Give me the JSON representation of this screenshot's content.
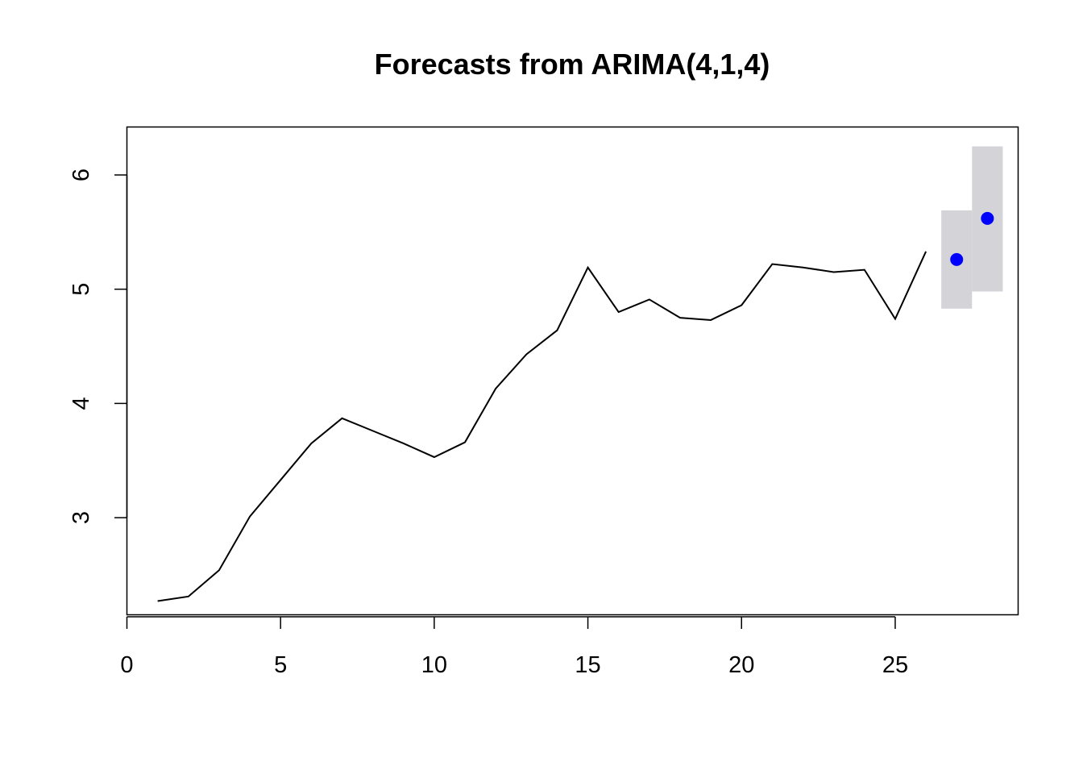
{
  "chart_data": {
    "type": "line",
    "title": "Forecasts from ARIMA(4,1,4)",
    "xlabel": "",
    "ylabel": "",
    "xlim": [
      0,
      29
    ],
    "ylim": [
      2.15,
      6.42
    ],
    "x_ticks": [
      0,
      5,
      10,
      15,
      20,
      25
    ],
    "y_ticks": [
      3,
      4,
      5,
      6
    ],
    "series": [
      {
        "x": [
          1,
          2,
          3,
          4,
          5,
          6,
          7,
          8,
          9,
          10,
          11,
          12,
          13,
          14,
          15,
          16,
          17,
          18,
          19,
          20,
          21,
          22,
          23,
          24,
          25,
          26
        ],
        "values": [
          2.27,
          2.31,
          2.54,
          3.01,
          3.33,
          3.65,
          3.87,
          3.76,
          3.65,
          3.53,
          3.66,
          4.13,
          4.43,
          4.64,
          5.19,
          4.8,
          4.91,
          4.75,
          4.73,
          4.86,
          5.22,
          5.19,
          5.15,
          5.17,
          4.74,
          5.33
        ]
      }
    ],
    "forecast": {
      "x": [
        27,
        28
      ],
      "point": [
        5.26,
        5.62
      ],
      "lower": [
        4.83,
        4.98
      ],
      "upper": [
        5.69,
        6.25
      ]
    },
    "colors": {
      "line": "#000000",
      "forecast_point": "#0000ff",
      "interval": "#d3d3d8"
    },
    "grid": false
  }
}
